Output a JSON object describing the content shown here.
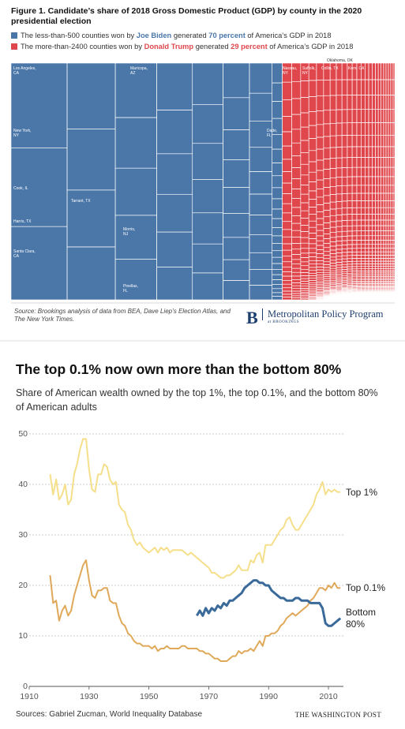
{
  "chart_data": [
    {
      "type": "treemap",
      "title": "Figure 1. Candidate’s share of 2018 Gross Domestic Product (GDP) by county in the 2020 presidential election",
      "series": [
        {
          "name": "Joe Biden",
          "color": "#4a76a8",
          "value": 70,
          "value_label": "70 percent",
          "text_before": "The less-than-500 counties won by",
          "text_between": "generated",
          "text_after": "of America’s GDP in 2018"
        },
        {
          "name": "Donald Trump",
          "color": "#e0474c",
          "value": 29,
          "value_label": "29 percent",
          "text_before": "The more-than-2400 counties won by",
          "text_between": "generated",
          "text_after": "of America’s GDP in 2018"
        }
      ],
      "labels": [
        "Los Angeles, CA",
        "Maricopa, AZ",
        "New York, NY",
        "Dade, FL",
        "Cook, IL",
        "Tarrant, TX",
        "Harris, TX",
        "Morris, NJ",
        "Santa Clara, CA",
        "Pinellas, FL",
        "Oklahoma, OK",
        "Nassau, NY",
        "Suffolk, NY",
        "Collin, TX",
        "Kern, CA"
      ],
      "source": "Source: Brookings analysis of data from BEA, Dave Liep’s Election Atlas, and The New York Times.",
      "logo": {
        "mark": "B",
        "name": "Metropolitan Policy Program",
        "sub": "at BROOKINGS"
      }
    },
    {
      "type": "line",
      "title": "The top 0.1% now own more than the bottom 80%",
      "subtitle": "Share of American wealth owned by the top 1%, the top 0.1%, and the bottom 80% of American adults",
      "source": "Sources: Gabriel Zucman, World Inequality Database",
      "credit": "THE WASHINGTON POST",
      "xlim": [
        1910,
        2015
      ],
      "xticks": [
        1910,
        1930,
        1950,
        1970,
        1990,
        2010
      ],
      "ylim": [
        0,
        50
      ],
      "yticks": [
        0,
        10,
        20,
        30,
        40,
        50
      ],
      "grid": true,
      "x": [
        1917,
        1918,
        1919,
        1920,
        1921,
        1922,
        1923,
        1924,
        1925,
        1926,
        1927,
        1928,
        1929,
        1930,
        1931,
        1932,
        1933,
        1934,
        1935,
        1936,
        1937,
        1938,
        1939,
        1940,
        1941,
        1942,
        1943,
        1944,
        1945,
        1946,
        1947,
        1948,
        1949,
        1950,
        1951,
        1952,
        1953,
        1954,
        1955,
        1956,
        1957,
        1958,
        1959,
        1960,
        1961,
        1962,
        1963,
        1964,
        1965,
        1966,
        1967,
        1968,
        1969,
        1970,
        1971,
        1972,
        1973,
        1974,
        1975,
        1976,
        1977,
        1978,
        1979,
        1980,
        1981,
        1982,
        1983,
        1984,
        1985,
        1986,
        1987,
        1988,
        1989,
        1990,
        1991,
        1992,
        1993,
        1994,
        1995,
        1996,
        1997,
        1998,
        1999,
        2000,
        2001,
        2002,
        2003,
        2004,
        2005,
        2006,
        2007,
        2008,
        2009,
        2010,
        2011,
        2012,
        2013,
        2014
      ],
      "series": [
        {
          "name": "Top 1%",
          "color": "#f5df8a",
          "values": [
            42,
            38,
            41,
            37,
            38,
            40,
            36,
            37,
            42,
            44,
            47,
            49,
            49,
            43,
            39,
            38.5,
            42,
            42,
            44,
            43.5,
            41,
            40,
            40.5,
            36,
            35,
            34.5,
            32,
            31,
            29,
            28,
            28.5,
            27.5,
            27,
            26.5,
            27,
            27.5,
            26.5,
            27.5,
            27,
            27.5,
            26.5,
            27,
            27,
            27,
            27,
            26.5,
            26,
            26.5,
            26,
            25.5,
            25,
            24.5,
            24,
            23.5,
            22.5,
            22.5,
            22,
            21.5,
            21.5,
            22,
            22,
            22.5,
            23,
            24,
            23,
            23,
            23,
            25,
            24.5,
            26,
            26.5,
            24.5,
            28,
            28,
            28,
            29,
            30,
            31,
            31.5,
            33,
            33.5,
            32,
            31,
            31,
            32,
            33,
            34,
            35,
            36,
            38,
            39,
            40.5,
            38,
            39,
            38.5,
            39,
            38.5,
            38.5
          ]
        },
        {
          "name": "Top 0.1%",
          "color": "#e0a95a",
          "values": [
            22,
            16.5,
            17,
            13,
            15,
            16,
            14,
            15,
            18,
            20,
            22,
            24,
            25,
            21,
            18,
            17.5,
            19,
            19,
            19.5,
            19.5,
            17,
            16.5,
            16.5,
            14,
            12.5,
            12,
            10.5,
            10,
            9,
            8.5,
            8.5,
            8,
            8,
            8,
            7.5,
            8,
            7,
            7.5,
            7.5,
            8,
            7.5,
            7.5,
            7.5,
            7.5,
            8,
            8,
            7.5,
            7.5,
            7.5,
            7.5,
            7,
            7,
            6.5,
            6.5,
            6,
            5.5,
            5.5,
            5,
            5,
            5,
            5.5,
            6,
            6,
            7,
            6.5,
            7,
            7,
            7.5,
            7,
            8,
            9,
            8,
            10,
            10,
            10.5,
            10.5,
            11,
            12,
            12.5,
            13.5,
            14,
            14.5,
            14,
            14.5,
            15,
            15.5,
            16,
            17,
            17.5,
            18.5,
            19.5,
            19.5,
            19,
            20,
            19.5,
            20.5,
            19.5,
            19.5
          ]
        },
        {
          "name": "Bottom 80%",
          "color": "#3a6a9a",
          "values": [
            null,
            null,
            null,
            null,
            null,
            null,
            null,
            null,
            null,
            null,
            null,
            null,
            null,
            null,
            null,
            null,
            null,
            null,
            null,
            null,
            null,
            null,
            null,
            null,
            null,
            null,
            null,
            null,
            null,
            null,
            null,
            null,
            null,
            null,
            null,
            null,
            null,
            null,
            null,
            null,
            null,
            null,
            null,
            null,
            null,
            null,
            null,
            null,
            null,
            14,
            15,
            14,
            15.5,
            14.5,
            15.5,
            15,
            16,
            15.5,
            16.5,
            16,
            17,
            17,
            17.5,
            18,
            18.5,
            19.5,
            20,
            20.5,
            21,
            21,
            20.5,
            20.5,
            20,
            20,
            19,
            18.5,
            18,
            17.5,
            17.5,
            17,
            17,
            17,
            17.5,
            17.5,
            17,
            17,
            17,
            16.5,
            16.5,
            16.5,
            16.5,
            15.5,
            12.5,
            12,
            12,
            12.5,
            13,
            13.5
          ]
        }
      ]
    }
  ]
}
